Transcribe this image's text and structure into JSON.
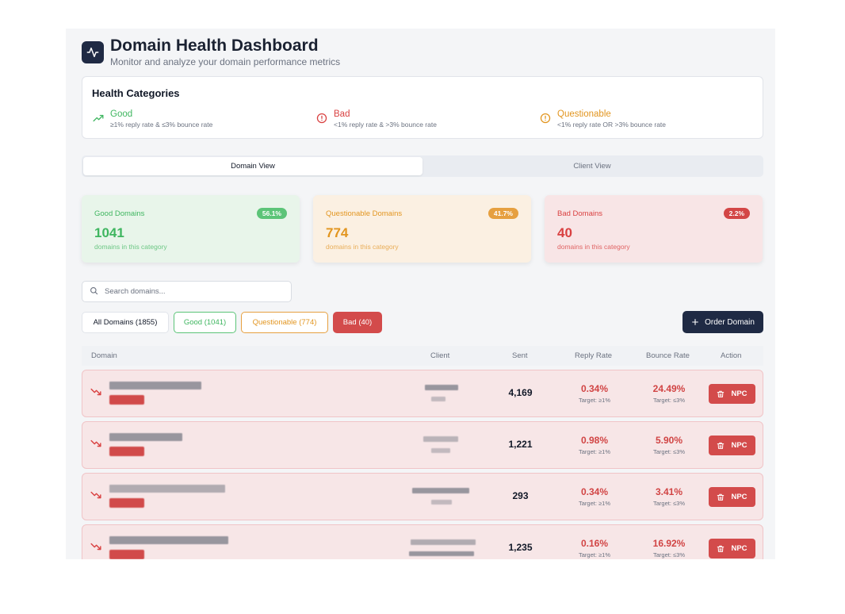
{
  "header": {
    "title": "Domain Health Dashboard",
    "subtitle": "Monitor and analyze your domain performance metrics",
    "logo_icon": "activity-icon"
  },
  "categories": {
    "title": "Health Categories",
    "items": [
      {
        "name": "Good",
        "desc": "≥1% reply rate & ≤3% bounce rate",
        "icon": "trending-up-icon",
        "color": "#3fb660"
      },
      {
        "name": "Bad",
        "desc": "<1% reply rate & >3% bounce rate",
        "icon": "alert-circle-icon",
        "color": "#d94141"
      },
      {
        "name": "Questionable",
        "desc": "<1% reply rate OR >3% bounce rate",
        "icon": "alert-circle-icon",
        "color": "#e2951f"
      }
    ]
  },
  "tabs": [
    {
      "label": "Domain View",
      "active": true
    },
    {
      "label": "Client View",
      "active": false
    }
  ],
  "stats": [
    {
      "label": "Good Domains",
      "percent": "56.1%",
      "count": "1041",
      "sub": "domains in this category",
      "color": "#3fb660",
      "bg": "#e8f5ea"
    },
    {
      "label": "Questionable Domains",
      "percent": "41.7%",
      "count": "774",
      "sub": "domains in this category",
      "color": "#e2951f",
      "bg": "#fbf0e2"
    },
    {
      "label": "Bad Domains",
      "percent": "2.2%",
      "count": "40",
      "sub": "domains in this category",
      "color": "#d94141",
      "bg": "#f8e5e6"
    }
  ],
  "search": {
    "placeholder": "Search domains...",
    "value": ""
  },
  "filters": [
    {
      "label": "All Domains (1855)"
    },
    {
      "label": "Good (1041)"
    },
    {
      "label": "Questionable (774)"
    },
    {
      "label": "Bad (40)"
    }
  ],
  "order_button": {
    "label": "Order Domain"
  },
  "table": {
    "headers": {
      "domain": "Domain",
      "client": "Client",
      "sent": "Sent",
      "reply": "Reply Rate",
      "bounce": "Bounce Rate",
      "action": "Action"
    },
    "rows": [
      {
        "sent": "4,169",
        "reply": "0.34%",
        "reply_target": "Target: ≥1%",
        "bounce": "24.49%",
        "bounce_target": "Target: ≤3%",
        "action": "NPC"
      },
      {
        "sent": "1,221",
        "reply": "0.98%",
        "reply_target": "Target: ≥1%",
        "bounce": "5.90%",
        "bounce_target": "Target: ≤3%",
        "action": "NPC"
      },
      {
        "sent": "293",
        "reply": "0.34%",
        "reply_target": "Target: ≥1%",
        "bounce": "3.41%",
        "bounce_target": "Target: ≤3%",
        "action": "NPC"
      },
      {
        "sent": "1,235",
        "reply": "0.16%",
        "reply_target": "Target: ≥1%",
        "bounce": "16.92%",
        "bounce_target": "Target: ≤3%",
        "action": "NPC"
      }
    ]
  }
}
